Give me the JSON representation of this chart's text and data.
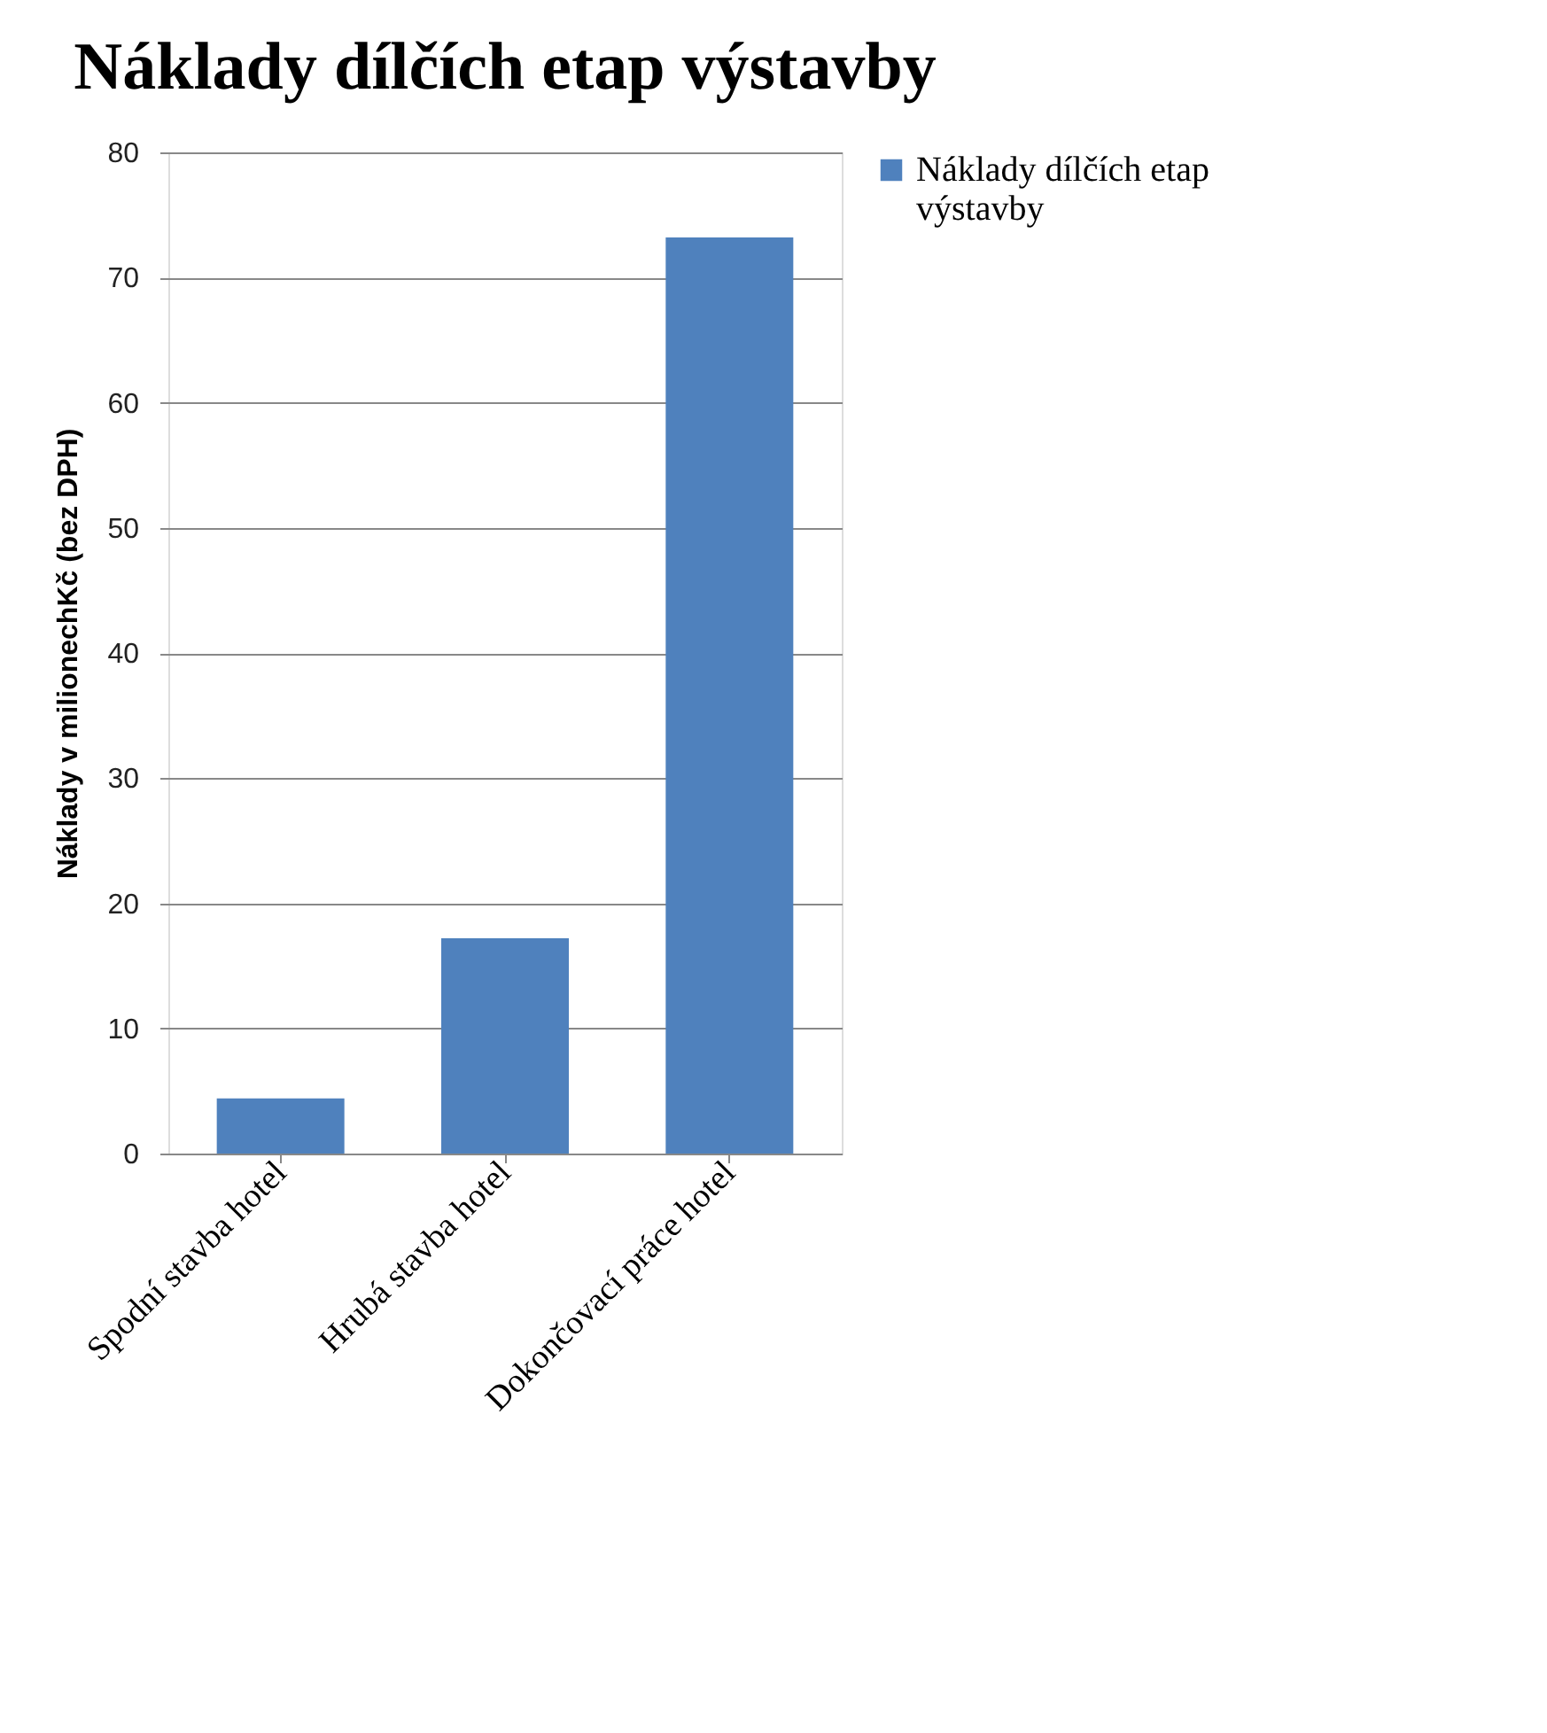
{
  "chart_data": {
    "type": "bar",
    "title": "Náklady dílčích etap výstavby",
    "ylabel": "Náklady v milionechKč (bez DPH)",
    "categories": [
      "Spodní stavba hotel",
      "Hrubá stavba hotel",
      "Dokončovací práce hotel"
    ],
    "series": [
      {
        "name": "Náklady dílčích etap výstavby",
        "color": "#4f81bd",
        "values": [
          4.4,
          17.2,
          73.2
        ]
      }
    ],
    "ylim": [
      0,
      80
    ],
    "yticks": [
      0,
      10,
      20,
      30,
      40,
      50,
      60,
      70,
      80
    ],
    "grid": "y",
    "legend": "right"
  }
}
